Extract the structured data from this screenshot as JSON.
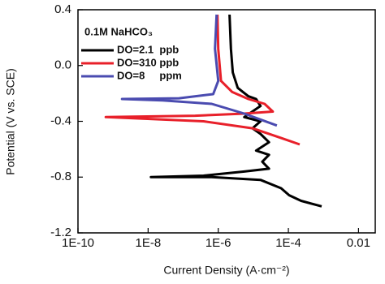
{
  "chart_data": {
    "type": "line",
    "x_label": "Current Density (A·cm⁻²)",
    "y_label": "Potential (V vs. SCE)",
    "legend_title": "0.1M NaHCO₃",
    "xscale": "log",
    "xlim": [
      1e-10,
      0.03
    ],
    "ylim": [
      -1.2,
      0.4
    ],
    "xticks": [
      {
        "value": 1e-10,
        "label": "1E-10"
      },
      {
        "value": 1e-08,
        "label": "1E-8"
      },
      {
        "value": 1e-06,
        "label": "1E-6"
      },
      {
        "value": 0.0001,
        "label": "1E-4"
      },
      0.01
    ],
    "yticks": [
      0.4,
      {
        "value": 0,
        "label": "0.0"
      },
      -0.4,
      -0.8,
      -1.2
    ],
    "grid": false,
    "legend": "upper left",
    "series": [
      {
        "name": "DO=2.1  ppb",
        "color": "#000000",
        "x": [
          0.00089,
          0.00023,
          0.000105,
          6.2e-05,
          1.6e-05,
          6.5e-07,
          1.2e-08,
          3.8e-07,
          5.5e-06,
          2.8e-05,
          1.8e-05,
          2.8e-05,
          1.2e-05,
          2.8e-05,
          1.6e-05,
          9.5e-06,
          1.6e-05,
          5.5e-06,
          1.6e-05,
          1.2e-05,
          7.2e-06,
          3.6e-06,
          2.6e-06,
          2.3e-06,
          2.1e-06
        ],
        "values": [
          -1.01,
          -0.97,
          -0.93,
          -0.88,
          -0.82,
          -0.8,
          -0.8,
          -0.79,
          -0.76,
          -0.74,
          -0.69,
          -0.64,
          -0.61,
          -0.55,
          -0.49,
          -0.45,
          -0.4,
          -0.37,
          -0.29,
          -0.24,
          -0.22,
          -0.16,
          -0.05,
          0.12,
          0.365
        ]
      },
      {
        "name": "DO=310 ppb",
        "color": "#e8202a",
        "x": [
          0.00021,
          6.2e-05,
          9.5e-06,
          3.8e-07,
          6.2e-10,
          2.2e-07,
          5.5e-06,
          3.6e-05,
          2.1e-05,
          7.2e-06,
          2.5e-06,
          1.2e-06,
          1e-06,
          9.5e-07
        ],
        "values": [
          -0.566,
          -0.52,
          -0.45,
          -0.4,
          -0.37,
          -0.36,
          -0.345,
          -0.33,
          -0.275,
          -0.24,
          -0.19,
          -0.11,
          0.12,
          0.365
        ]
      },
      {
        "name": "DO=8     ppm",
        "color": "#4a4bb0",
        "x": [
          4.7e-05,
          5.5e-06,
          6.5e-07,
          2.6e-08,
          1.8e-09,
          7.6e-08,
          7.2e-07,
          1e-06,
          8.1e-07,
          9e-07
        ],
        "values": [
          -0.43,
          -0.345,
          -0.275,
          -0.25,
          -0.24,
          -0.235,
          -0.205,
          -0.11,
          0.12,
          0.365
        ]
      }
    ]
  }
}
